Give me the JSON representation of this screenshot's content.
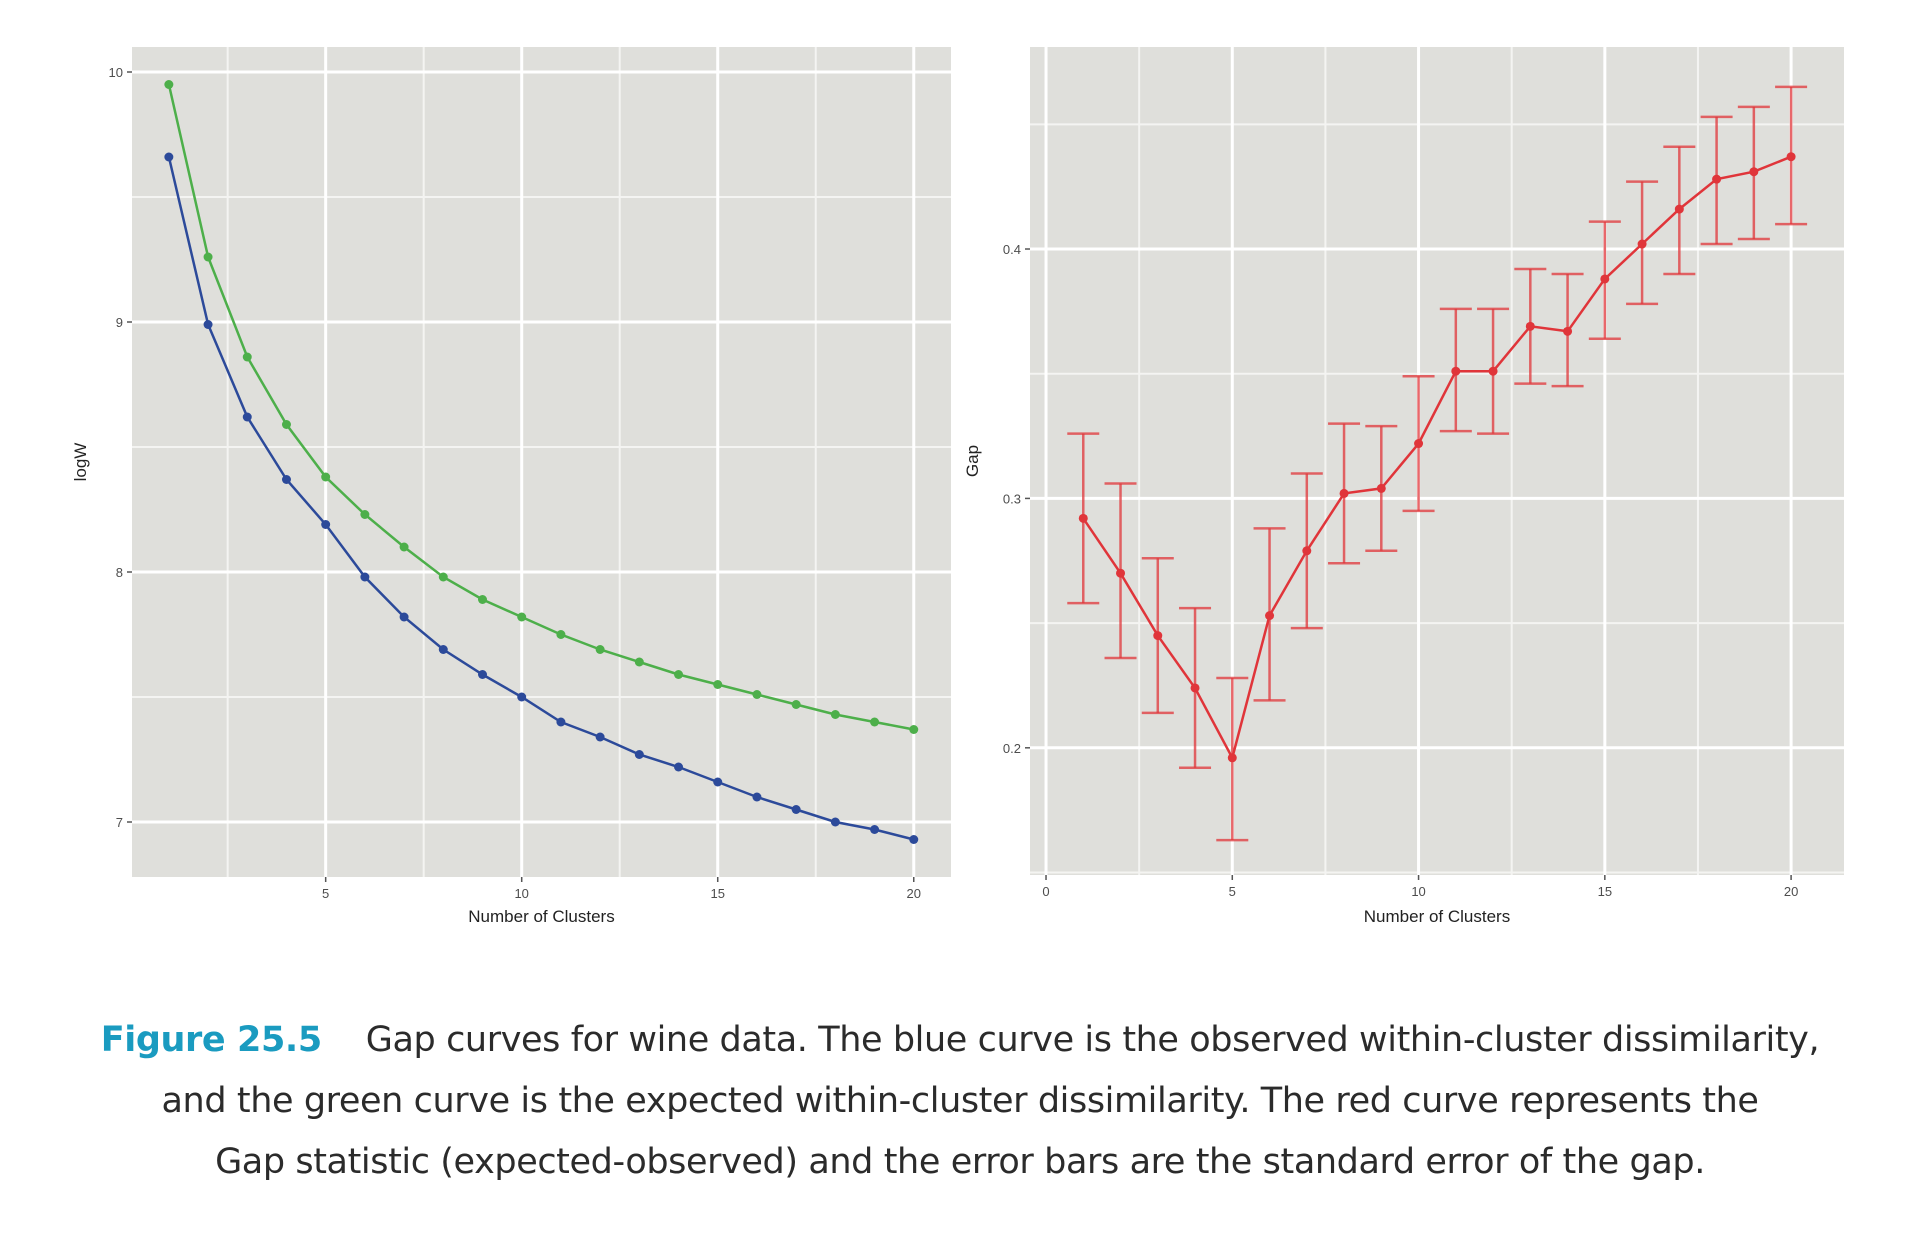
{
  "chart_data": [
    {
      "type": "line",
      "panel": "left",
      "title": "",
      "xlabel": "Number of Clusters",
      "ylabel": "logW",
      "x": [
        1,
        2,
        3,
        4,
        5,
        6,
        7,
        8,
        9,
        10,
        11,
        12,
        13,
        14,
        15,
        16,
        17,
        18,
        19,
        20
      ],
      "series": [
        {
          "name": "observed (blue)",
          "color": "#2c4a9a",
          "values": [
            9.66,
            8.99,
            8.62,
            8.37,
            8.19,
            7.98,
            7.82,
            7.69,
            7.59,
            7.5,
            7.4,
            7.34,
            7.27,
            7.22,
            7.16,
            7.1,
            7.05,
            7.0,
            6.97,
            6.93
          ]
        },
        {
          "name": "expected (green)",
          "color": "#4daf4a",
          "values": [
            9.95,
            9.26,
            8.86,
            8.59,
            8.38,
            8.23,
            8.1,
            7.98,
            7.89,
            7.82,
            7.75,
            7.69,
            7.64,
            7.59,
            7.55,
            7.51,
            7.47,
            7.43,
            7.4,
            7.37
          ]
        }
      ],
      "xlim": [
        0.06,
        20.95
      ],
      "ylim": [
        6.78,
        10.1
      ],
      "xticks": [
        5,
        10,
        15,
        20
      ],
      "xtick_labels": [
        "5",
        "10",
        "15",
        "20"
      ],
      "x_minor": [
        2.5,
        7.5,
        12.5,
        17.5
      ],
      "yticks": [
        7,
        8,
        9,
        10
      ],
      "ytick_labels": [
        "7",
        "8",
        "9",
        "10"
      ],
      "y_minor": [
        7.5,
        8.5,
        9.5
      ],
      "grid": true,
      "legend": null,
      "panel_background": "#dfdfdb"
    },
    {
      "type": "line",
      "panel": "right",
      "title": "",
      "xlabel": "Number of Clusters",
      "ylabel": "Gap",
      "x": [
        1,
        2,
        3,
        4,
        5,
        6,
        7,
        8,
        9,
        10,
        11,
        12,
        13,
        14,
        15,
        16,
        17,
        18,
        19,
        20
      ],
      "series": [
        {
          "name": "Gap statistic (red)",
          "color": "#e0353a",
          "values": [
            0.292,
            0.27,
            0.245,
            0.224,
            0.196,
            0.253,
            0.279,
            0.302,
            0.304,
            0.322,
            0.351,
            0.351,
            0.369,
            0.367,
            0.388,
            0.402,
            0.416,
            0.428,
            0.431,
            0.437
          ],
          "error_upper": [
            0.326,
            0.306,
            0.276,
            0.256,
            0.228,
            0.288,
            0.31,
            0.33,
            0.329,
            0.349,
            0.376,
            0.376,
            0.392,
            0.39,
            0.411,
            0.427,
            0.441,
            0.453,
            0.457,
            0.465
          ],
          "error_lower": [
            0.258,
            0.236,
            0.214,
            0.192,
            0.163,
            0.219,
            0.248,
            0.274,
            0.279,
            0.295,
            0.327,
            0.326,
            0.346,
            0.345,
            0.364,
            0.378,
            0.39,
            0.402,
            0.404,
            0.41
          ]
        }
      ],
      "xlim": [
        -0.43,
        21.42
      ],
      "ylim": [
        0.149,
        0.481
      ],
      "xticks": [
        0,
        5,
        10,
        15,
        20
      ],
      "xtick_labels": [
        "0",
        "5",
        "10",
        "15",
        "20"
      ],
      "x_minor": [
        2.5,
        7.5,
        12.5,
        17.5
      ],
      "yticks": [
        0.2,
        0.3,
        0.4
      ],
      "ytick_labels": [
        "0.2",
        "0.3",
        "0.4"
      ],
      "y_minor": [
        0.15,
        0.25,
        0.35,
        0.45
      ],
      "grid": true,
      "legend": null,
      "panel_background": "#dfdfdb"
    }
  ],
  "caption": {
    "label": "Figure 25.5",
    "line1": "Gap curves for wine data. The blue curve is the observed within-cluster dissimilarity,",
    "line2": "and the green curve is the expected within-cluster dissimilarity. The red curve represents the",
    "line3": "Gap statistic (expected-observed) and the error bars are the standard error of the gap."
  }
}
